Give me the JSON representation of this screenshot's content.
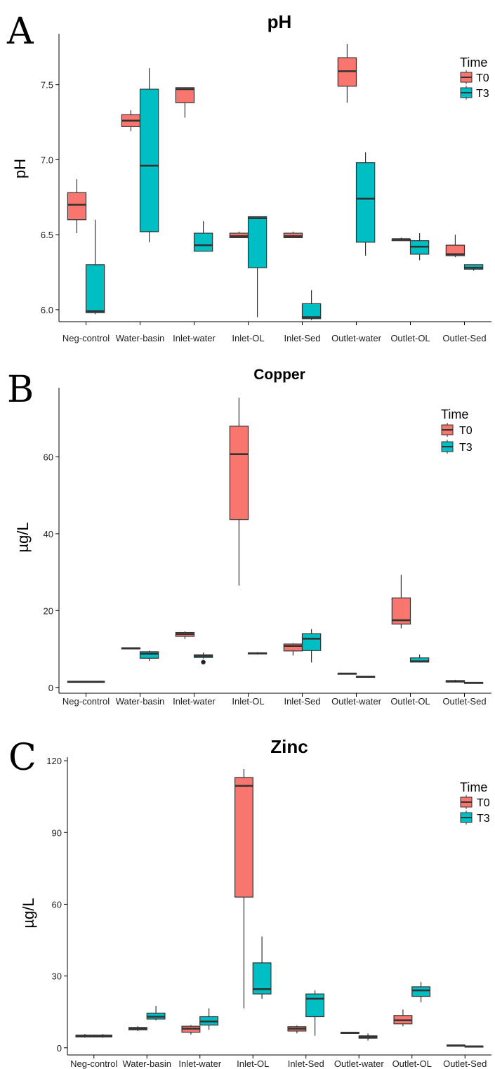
{
  "colors": {
    "T0": "#F8766D",
    "T3": "#00BFC4",
    "median": "#333333",
    "whisker": "#333333"
  },
  "chart_data": [
    {
      "type": "box",
      "panel": "A",
      "title": "pH",
      "xlabel": "",
      "ylabel": "pH",
      "ylim": [
        5.92,
        7.84
      ],
      "yticks": [
        6.0,
        6.5,
        7.0,
        7.5
      ],
      "ytick_labels": [
        "6.0",
        "6.5",
        "7.0",
        "7.5"
      ],
      "grid": false,
      "legend": {
        "title": "Time",
        "entries": [
          "T0",
          "T3"
        ],
        "position": "top-right"
      },
      "categories": [
        "Neg-control",
        "Water-basin",
        "Inlet-water",
        "Inlet-OL",
        "Inlet-Sed",
        "Outlet-water",
        "Outlet-OL",
        "Outlet-Sed"
      ],
      "series": [
        {
          "name": "T0",
          "boxes": [
            {
              "min": 6.51,
              "q1": 6.6,
              "median": 6.7,
              "q3": 6.78,
              "max": 6.87
            },
            {
              "min": 7.19,
              "q1": 7.22,
              "median": 7.26,
              "q3": 7.3,
              "max": 7.33
            },
            {
              "min": 7.28,
              "q1": 7.38,
              "median": 7.47,
              "q3": 7.48,
              "max": 7.48
            },
            {
              "min": 6.48,
              "q1": 6.48,
              "median": 6.49,
              "q3": 6.51,
              "max": 6.52
            },
            {
              "min": 6.48,
              "q1": 6.48,
              "median": 6.49,
              "q3": 6.51,
              "max": 6.52
            },
            {
              "min": 7.38,
              "q1": 7.49,
              "median": 7.59,
              "q3": 7.68,
              "max": 7.77
            },
            {
              "min": 6.46,
              "q1": 6.46,
              "median": 6.47,
              "q3": 6.47,
              "max": 6.48
            },
            {
              "min": 6.35,
              "q1": 6.36,
              "median": 6.37,
              "q3": 6.43,
              "max": 6.5
            }
          ]
        },
        {
          "name": "T3",
          "boxes": [
            {
              "min": 5.97,
              "q1": 5.98,
              "median": 5.99,
              "q3": 6.3,
              "max": 6.6
            },
            {
              "min": 6.45,
              "q1": 6.52,
              "median": 6.96,
              "q3": 7.47,
              "max": 7.61
            },
            {
              "min": 6.39,
              "q1": 6.39,
              "median": 6.43,
              "q3": 6.51,
              "max": 6.59
            },
            {
              "min": 5.95,
              "q1": 6.28,
              "median": 6.61,
              "q3": 6.62,
              "max": 6.62
            },
            {
              "min": 5.93,
              "q1": 5.94,
              "median": 5.95,
              "q3": 6.04,
              "max": 6.13
            },
            {
              "min": 6.36,
              "q1": 6.45,
              "median": 6.74,
              "q3": 6.98,
              "max": 7.05
            },
            {
              "min": 6.33,
              "q1": 6.37,
              "median": 6.42,
              "q3": 6.46,
              "max": 6.51
            },
            {
              "min": 6.26,
              "q1": 6.27,
              "median": 6.28,
              "q3": 6.3,
              "max": 6.3
            }
          ]
        }
      ]
    },
    {
      "type": "box",
      "panel": "B",
      "title": "Copper",
      "xlabel": "",
      "ylabel": "µg/L",
      "ylim": [
        -1.5,
        78
      ],
      "yticks": [
        0,
        20,
        40,
        60
      ],
      "ytick_labels": [
        "0",
        "20",
        "40",
        "60"
      ],
      "grid": false,
      "legend": {
        "title": "Time",
        "entries": [
          "T0",
          "T3"
        ],
        "position": "top-right"
      },
      "categories": [
        "Neg-control",
        "Water-basin",
        "Inlet-water",
        "Inlet-OL",
        "Inlet-Sed",
        "Outlet-water",
        "Outlet-OL",
        "Outlet-Sed"
      ],
      "series": [
        {
          "name": "T0",
          "boxes": [
            {
              "min": 1.3,
              "q1": 1.4,
              "median": 1.5,
              "q3": 1.6,
              "max": 1.7
            },
            {
              "min": 10.0,
              "q1": 10.1,
              "median": 10.2,
              "q3": 10.3,
              "max": 10.4
            },
            {
              "min": 12.6,
              "q1": 13.3,
              "median": 13.9,
              "q3": 14.3,
              "max": 14.6
            },
            {
              "min": 26.5,
              "q1": 43.7,
              "median": 60.7,
              "q3": 68.0,
              "max": 75.4
            },
            {
              "min": 8.3,
              "q1": 9.5,
              "median": 10.8,
              "q3": 11.3,
              "max": 11.5
            },
            {
              "min": 3.4,
              "q1": 3.5,
              "median": 3.6,
              "q3": 3.7,
              "max": 3.8
            },
            {
              "min": 15.4,
              "q1": 16.5,
              "median": 17.5,
              "q3": 23.3,
              "max": 29.3
            },
            {
              "min": 1.3,
              "q1": 1.4,
              "median": 1.6,
              "q3": 1.8,
              "max": 2.0
            }
          ]
        },
        {
          "name": "T3",
          "boxes": [
            {
              "min": 1.3,
              "q1": 1.4,
              "median": 1.5,
              "q3": 1.6,
              "max": 1.7
            },
            {
              "min": 6.9,
              "q1": 7.6,
              "median": 8.8,
              "q3": 9.3,
              "max": 9.6
            },
            {
              "min": 7.5,
              "q1": 7.8,
              "median": 8.2,
              "q3": 8.5,
              "max": 9.1,
              "outliers": [
                6.6
              ]
            },
            {
              "min": 8.6,
              "q1": 8.8,
              "median": 8.9,
              "q3": 9.0,
              "max": 9.2
            },
            {
              "min": 6.5,
              "q1": 9.6,
              "median": 12.7,
              "q3": 14.0,
              "max": 15.2
            },
            {
              "min": 2.6,
              "q1": 2.7,
              "median": 2.8,
              "q3": 2.9,
              "max": 3.0
            },
            {
              "min": 6.5,
              "q1": 6.6,
              "median": 6.8,
              "q3": 7.7,
              "max": 8.6
            },
            {
              "min": 1.0,
              "q1": 1.1,
              "median": 1.2,
              "q3": 1.3,
              "max": 1.4
            }
          ]
        }
      ]
    },
    {
      "type": "box",
      "panel": "C",
      "title": "Zinc",
      "xlabel": "",
      "ylabel": "µg/L",
      "ylim": [
        -3,
        121.5
      ],
      "yticks": [
        0,
        30,
        60,
        90,
        120
      ],
      "ytick_labels": [
        "0",
        "30",
        "60",
        "90",
        "120"
      ],
      "grid": false,
      "legend": {
        "title": "Time",
        "entries": [
          "T0",
          "T3"
        ],
        "position": "top-right"
      },
      "categories": [
        "Neg-control",
        "Water-basin",
        "Inlet-water",
        "Inlet-OL",
        "Inlet-Sed",
        "Outlet-water",
        "Outlet-OL",
        "Outlet-Sed"
      ],
      "series": [
        {
          "name": "T0",
          "boxes": [
            {
              "min": 4.2,
              "q1": 4.5,
              "median": 4.9,
              "q3": 5.3,
              "max": 5.8
            },
            {
              "min": 7.0,
              "q1": 7.5,
              "median": 8.0,
              "q3": 8.5,
              "max": 9.0
            },
            {
              "min": 5.5,
              "q1": 6.5,
              "median": 8.0,
              "q3": 9.0,
              "max": 9.5
            },
            {
              "min": 16.5,
              "q1": 63.0,
              "median": 109.5,
              "q3": 113.0,
              "max": 116.5
            },
            {
              "min": 6.0,
              "q1": 7.0,
              "median": 8.0,
              "q3": 8.8,
              "max": 9.3
            },
            {
              "min": 5.8,
              "q1": 6.0,
              "median": 6.2,
              "q3": 6.5,
              "max": 6.7
            },
            {
              "min": 9.0,
              "q1": 10.0,
              "median": 11.5,
              "q3": 13.5,
              "max": 16.0
            },
            {
              "min": 0.8,
              "q1": 0.9,
              "median": 1.0,
              "q3": 1.1,
              "max": 1.2
            }
          ]
        },
        {
          "name": "T3",
          "boxes": [
            {
              "min": 4.2,
              "q1": 4.5,
              "median": 4.9,
              "q3": 5.3,
              "max": 5.8
            },
            {
              "min": 11.5,
              "q1": 12.0,
              "median": 13.0,
              "q3": 14.5,
              "max": 17.5
            },
            {
              "min": 7.5,
              "q1": 9.5,
              "median": 11.0,
              "q3": 13.0,
              "max": 16.5
            },
            {
              "min": 20.5,
              "q1": 22.5,
              "median": 24.5,
              "q3": 35.5,
              "max": 46.5
            },
            {
              "min": 5.0,
              "q1": 13.0,
              "median": 20.5,
              "q3": 22.5,
              "max": 24.0
            },
            {
              "min": 3.0,
              "q1": 4.0,
              "median": 4.5,
              "q3": 5.0,
              "max": 6.0
            },
            {
              "min": 19.0,
              "q1": 21.5,
              "median": 24.0,
              "q3": 25.5,
              "max": 27.5
            },
            {
              "min": 0.4,
              "q1": 0.5,
              "median": 0.6,
              "q3": 0.7,
              "max": 0.8
            }
          ]
        }
      ]
    }
  ]
}
